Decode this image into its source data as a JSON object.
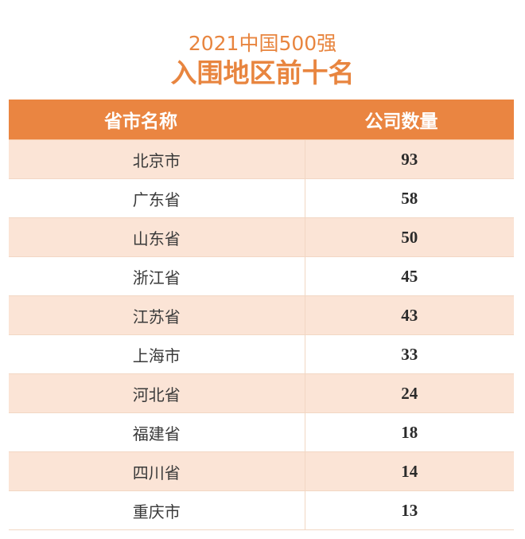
{
  "header": {
    "subtitle": "2021中国500强",
    "title": "入围地区前十名"
  },
  "table": {
    "columns": [
      "省市名称",
      "公司数量"
    ],
    "rows": [
      {
        "name": "北京市",
        "count": "93"
      },
      {
        "name": "广东省",
        "count": "58"
      },
      {
        "name": "山东省",
        "count": "50"
      },
      {
        "name": "浙江省",
        "count": "45"
      },
      {
        "name": "江苏省",
        "count": "43"
      },
      {
        "name": "上海市",
        "count": "33"
      },
      {
        "name": "河北省",
        "count": "24"
      },
      {
        "name": "福建省",
        "count": "18"
      },
      {
        "name": "四川省",
        "count": "14"
      },
      {
        "name": "重庆市",
        "count": "13"
      }
    ]
  },
  "colors": {
    "accent": "#ea8541",
    "row_tint": "#fbe4d6"
  }
}
